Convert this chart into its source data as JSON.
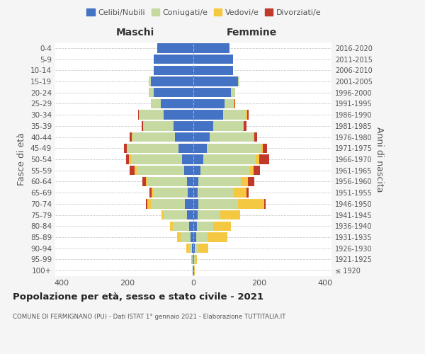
{
  "age_groups": [
    "100+",
    "95-99",
    "90-94",
    "85-89",
    "80-84",
    "75-79",
    "70-74",
    "65-69",
    "60-64",
    "55-59",
    "50-54",
    "45-49",
    "40-44",
    "35-39",
    "30-34",
    "25-29",
    "20-24",
    "15-19",
    "10-14",
    "5-9",
    "0-4"
  ],
  "birth_years": [
    "≤ 1920",
    "1921-1925",
    "1926-1930",
    "1931-1935",
    "1936-1940",
    "1941-1945",
    "1946-1950",
    "1951-1955",
    "1956-1960",
    "1961-1965",
    "1966-1970",
    "1971-1975",
    "1976-1980",
    "1981-1985",
    "1986-1990",
    "1991-1995",
    "1996-2000",
    "2001-2005",
    "2006-2010",
    "2011-2015",
    "2016-2020"
  ],
  "colors": {
    "celibi": "#4472c4",
    "coniugati": "#c5d9a0",
    "vedovi": "#f5c842",
    "divorziati": "#c0392b"
  },
  "maschi": {
    "celibi": [
      2,
      3,
      5,
      8,
      12,
      20,
      25,
      18,
      20,
      28,
      35,
      45,
      55,
      60,
      90,
      100,
      120,
      130,
      120,
      120,
      110
    ],
    "coniugati": [
      0,
      2,
      8,
      30,
      50,
      70,
      105,
      105,
      120,
      145,
      155,
      155,
      130,
      90,
      75,
      30,
      15,
      5,
      0,
      0,
      0
    ],
    "vedovi": [
      0,
      2,
      8,
      12,
      10,
      8,
      10,
      5,
      5,
      5,
      5,
      3,
      3,
      2,
      0,
      0,
      0,
      0,
      0,
      0,
      0
    ],
    "divorziati": [
      0,
      0,
      0,
      0,
      0,
      0,
      5,
      5,
      10,
      15,
      10,
      8,
      5,
      5,
      3,
      0,
      0,
      0,
      0,
      0,
      0
    ]
  },
  "femmine": {
    "celibi": [
      2,
      3,
      5,
      8,
      10,
      12,
      15,
      12,
      15,
      22,
      30,
      40,
      50,
      60,
      90,
      95,
      115,
      135,
      120,
      120,
      110
    ],
    "coniugati": [
      0,
      2,
      10,
      35,
      50,
      70,
      120,
      110,
      130,
      150,
      160,
      165,
      130,
      90,
      70,
      28,
      12,
      4,
      0,
      0,
      0
    ],
    "vedovi": [
      2,
      5,
      30,
      60,
      55,
      60,
      80,
      40,
      20,
      10,
      10,
      5,
      5,
      3,
      3,
      2,
      0,
      0,
      0,
      0,
      0
    ],
    "divorziati": [
      0,
      0,
      0,
      0,
      0,
      0,
      5,
      5,
      20,
      20,
      30,
      15,
      8,
      8,
      5,
      3,
      0,
      0,
      0,
      0,
      0
    ]
  },
  "xlim": 420,
  "title": "Popolazione per età, sesso e stato civile - 2021",
  "subtitle": "COMUNE DI FERMIGNANO (PU) - Dati ISTAT 1° gennaio 2021 - Elaborazione TUTTITALIA.IT",
  "ylabel_left": "Fasce di età",
  "ylabel_right": "Anni di nascita",
  "xlabel_left": "Maschi",
  "xlabel_right": "Femmine",
  "bg_color": "#f5f5f5",
  "plot_bg_color": "#ffffff",
  "legend_labels": [
    "Celibi/Nubili",
    "Coniugati/e",
    "Vedovi/e",
    "Divorziati/e"
  ]
}
